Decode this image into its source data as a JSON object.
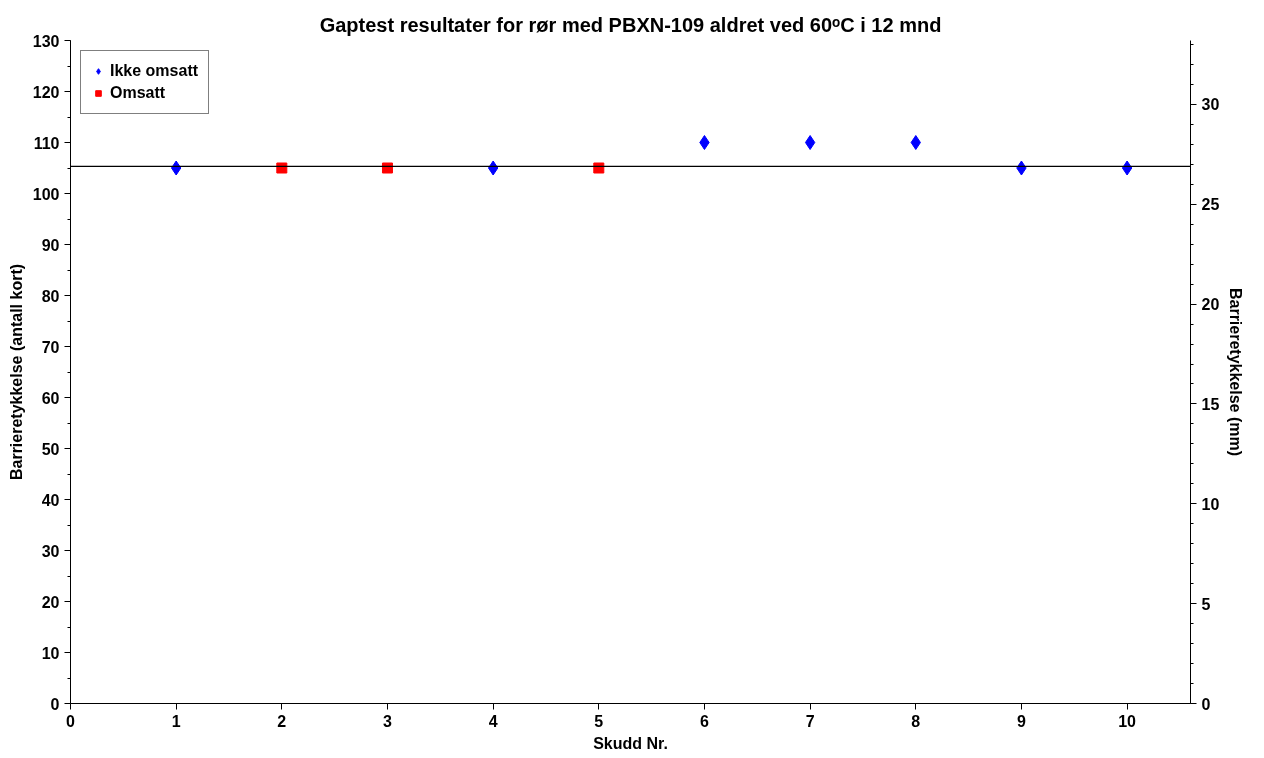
{
  "chart_data": {
    "type": "scatter",
    "title": "Gaptest resultater for rør med PBXN-109 aldret ved 60ᵒC i 12 mnd",
    "xlabel": "Skudd Nr.",
    "ylabel": "Barrieretykkelse (antall kort)",
    "y2label": "Barrieretykkelse (mm)",
    "series": [
      {
        "name": "Ikke omsatt",
        "color": "#0000ff",
        "marker": "diamond",
        "x": [
          1,
          4,
          6,
          7,
          8,
          9,
          10
        ],
        "values": [
          105,
          105,
          110,
          110,
          110,
          105,
          105
        ]
      },
      {
        "name": "Omsatt",
        "color": "#ff0000",
        "marker": "square",
        "x": [
          2,
          3,
          5
        ],
        "values": [
          105,
          105,
          105
        ]
      }
    ],
    "xlim": [
      0,
      10.6
    ],
    "xticks": [
      0,
      1,
      2,
      3,
      4,
      5,
      6,
      7,
      8,
      9,
      10
    ],
    "ylim": [
      0,
      130
    ],
    "yticks": [
      0,
      10,
      20,
      30,
      40,
      50,
      60,
      70,
      80,
      90,
      100,
      110,
      120,
      130
    ],
    "y2lim": [
      0,
      33.2
    ],
    "y2ticks": [
      0,
      5,
      10,
      15,
      20,
      25,
      30
    ],
    "ref_lines": [
      {
        "axis": "y",
        "value": 105.3,
        "color": "#000000"
      }
    ],
    "grid": false,
    "legend": "top left"
  }
}
